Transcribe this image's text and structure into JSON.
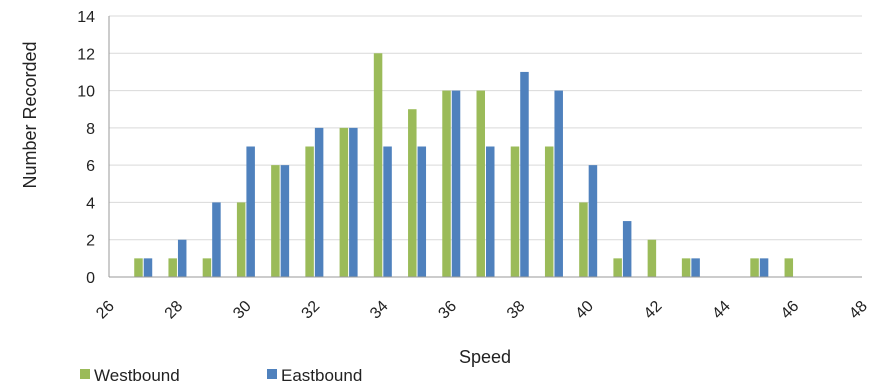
{
  "chart_data": {
    "type": "bar",
    "title": "",
    "xlabel": "Speed",
    "ylabel": "Number Recorded",
    "ylim": [
      0,
      14
    ],
    "yticks": [
      0,
      2,
      4,
      6,
      8,
      10,
      12,
      14
    ],
    "xlim": [
      26,
      48
    ],
    "xticks": [
      26,
      28,
      30,
      32,
      34,
      36,
      38,
      40,
      42,
      44,
      46,
      48
    ],
    "grid": true,
    "legend": "bottom-left",
    "x": [
      27,
      28,
      29,
      30,
      31,
      32,
      33,
      34,
      35,
      36,
      37,
      38,
      39,
      40,
      41,
      42,
      43,
      44,
      45,
      46
    ],
    "series": [
      {
        "name": "Westbound",
        "color": "#9bbb59",
        "values": [
          1,
          1,
          1,
          4,
          6,
          7,
          8,
          12,
          9,
          10,
          10,
          7,
          7,
          4,
          1,
          2,
          1,
          0,
          1,
          1
        ]
      },
      {
        "name": "Eastbound",
        "color": "#4f81bd",
        "values": [
          1,
          2,
          4,
          7,
          6,
          8,
          8,
          7,
          7,
          10,
          7,
          11,
          10,
          6,
          3,
          0,
          1,
          0,
          1,
          0
        ]
      }
    ]
  }
}
